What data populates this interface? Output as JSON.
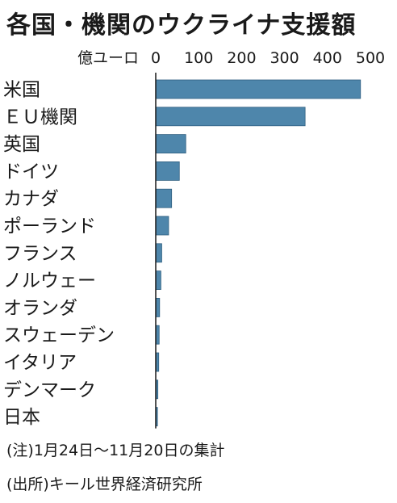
{
  "title": "各国・機関のウクライナ支援額",
  "chart_data": {
    "type": "bar",
    "orientation": "horizontal",
    "unit": "億ユーロ",
    "ticks": [
      0,
      100,
      200,
      300,
      400,
      500
    ],
    "xlim": [
      0,
      500
    ],
    "categories": [
      "米国",
      "ＥＵ機関",
      "英国",
      "ドイツ",
      "カナダ",
      "ポーランド",
      "フランス",
      "ノルウェー",
      "オランダ",
      "スウェーデン",
      "イタリア",
      "デンマーク",
      "日本"
    ],
    "values": [
      477,
      348,
      70,
      55,
      37,
      30,
      14,
      12,
      9,
      8,
      7,
      5,
      4
    ],
    "bar_color": "#4e86ab",
    "grid": false,
    "legend": "none"
  },
  "notes": {
    "period": "(注)1月24日〜11月20日の集計",
    "source": "(出所)キール世界経済研究所"
  }
}
